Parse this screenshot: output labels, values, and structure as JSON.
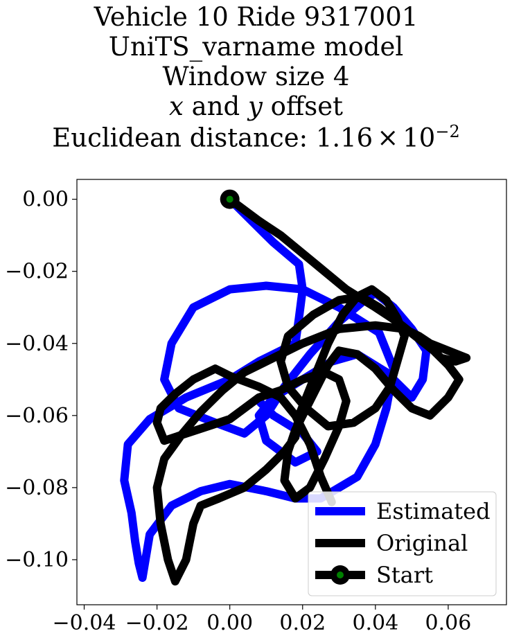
{
  "title_lines": [
    "Vehicle 10 Ride 9317001",
    "UniTS_varname model",
    "Window size 4"
  ],
  "title_offset_line": {
    "x_var": "x",
    "and_word": " and ",
    "y_var": "y",
    "suffix": " offset"
  },
  "title_distance_line": {
    "prefix": "Euclidean distance: ",
    "mantissa": "1.16",
    "times": "×",
    "base": "10",
    "exponent": "−2"
  },
  "colors": {
    "estimated": "#0000ff",
    "original": "#000000",
    "start_marker": "#008000",
    "axes": "#000000"
  },
  "chart_data": {
    "type": "line",
    "xlim": [
      -0.042,
      0.076
    ],
    "ylim": [
      -0.1125,
      0.0055
    ],
    "x_ticks": [
      -0.04,
      -0.02,
      0.0,
      0.02,
      0.04,
      0.06
    ],
    "x_tick_labels": [
      "−0.04",
      "−0.02",
      "0.00",
      "0.02",
      "0.04",
      "0.06"
    ],
    "y_ticks": [
      0.0,
      -0.02,
      -0.04,
      -0.06,
      -0.08,
      -0.1
    ],
    "y_tick_labels": [
      "0.00",
      "−0.02",
      "−0.04",
      "−0.06",
      "−0.08",
      "−0.10"
    ],
    "grid": false,
    "legend": {
      "location": "lower-right",
      "entries": [
        "Estimated",
        "Original",
        "Start"
      ]
    },
    "series": [
      {
        "name": "Estimated",
        "color": "#0000ff",
        "x": [
          0.0,
          0.012,
          0.019,
          0.02,
          0.019,
          0.018,
          0.008,
          0.0,
          -0.012,
          -0.022,
          -0.028,
          -0.029,
          -0.027,
          -0.026,
          -0.025,
          -0.024,
          -0.022,
          -0.016,
          -0.008,
          0.0,
          0.01,
          0.018,
          0.025,
          0.035,
          0.04,
          0.043,
          0.045,
          0.041,
          0.03,
          0.02,
          0.01,
          0.0,
          -0.01,
          -0.016,
          -0.018,
          -0.014,
          -0.004,
          0.004,
          0.01,
          0.015,
          0.022,
          0.03,
          0.037,
          0.04,
          0.045,
          0.05,
          0.054,
          0.053,
          0.05,
          0.043,
          0.035,
          0.028,
          0.02,
          0.012,
          0.008,
          0.01,
          0.018,
          0.024,
          0.02,
          0.012,
          0.008
        ],
        "y": [
          0.0,
          -0.012,
          -0.018,
          -0.025,
          -0.033,
          -0.04,
          -0.045,
          -0.05,
          -0.055,
          -0.061,
          -0.068,
          -0.078,
          -0.087,
          -0.095,
          -0.101,
          -0.105,
          -0.093,
          -0.085,
          -0.081,
          -0.079,
          -0.081,
          -0.083,
          -0.083,
          -0.077,
          -0.068,
          -0.058,
          -0.047,
          -0.037,
          -0.03,
          -0.025,
          -0.024,
          -0.025,
          -0.03,
          -0.04,
          -0.05,
          -0.058,
          -0.062,
          -0.065,
          -0.06,
          -0.052,
          -0.043,
          -0.034,
          -0.028,
          -0.026,
          -0.03,
          -0.036,
          -0.042,
          -0.05,
          -0.055,
          -0.048,
          -0.043,
          -0.045,
          -0.05,
          -0.055,
          -0.06,
          -0.067,
          -0.073,
          -0.07,
          -0.065,
          -0.06,
          -0.056
        ]
      },
      {
        "name": "Original",
        "color": "#000000",
        "x": [
          0.0,
          0.008,
          0.014,
          0.02,
          0.026,
          0.032,
          0.04,
          0.046,
          0.051,
          0.055,
          0.058,
          0.062,
          0.065,
          0.06,
          0.055,
          0.052,
          0.048,
          0.04,
          0.03,
          0.02,
          0.012,
          0.004,
          -0.002,
          -0.008,
          -0.013,
          -0.018,
          -0.02,
          -0.019,
          -0.017,
          -0.015,
          -0.012,
          -0.01,
          -0.008,
          -0.003,
          0.004,
          0.01,
          0.015,
          0.018,
          0.019,
          0.023,
          0.027,
          0.031,
          0.035,
          0.039,
          0.043,
          0.046,
          0.048,
          0.046,
          0.044,
          0.04,
          0.034,
          0.027,
          0.021,
          0.016,
          0.014,
          0.016,
          0.023,
          0.03,
          0.036,
          0.041,
          0.046,
          0.051,
          0.056,
          0.06,
          0.063,
          0.06,
          0.055,
          0.05,
          0.045,
          0.04,
          0.035,
          0.03,
          0.027,
          0.024,
          0.021,
          0.018,
          0.016,
          0.015,
          0.018,
          0.022,
          0.026,
          0.03,
          0.032,
          0.03,
          0.026,
          0.02,
          0.014,
          0.008,
          0.004,
          0.0,
          -0.006,
          -0.012,
          -0.018,
          -0.02,
          -0.019,
          -0.015,
          -0.01,
          -0.006,
          -0.004,
          0.0,
          0.008,
          0.014,
          0.018,
          0.022,
          0.025,
          0.028
        ],
        "y": [
          0.0,
          -0.006,
          -0.01,
          -0.015,
          -0.02,
          -0.025,
          -0.03,
          -0.034,
          -0.038,
          -0.041,
          -0.044,
          -0.045,
          -0.044,
          -0.042,
          -0.04,
          -0.038,
          -0.036,
          -0.035,
          -0.036,
          -0.04,
          -0.044,
          -0.048,
          -0.053,
          -0.059,
          -0.065,
          -0.072,
          -0.08,
          -0.09,
          -0.1,
          -0.106,
          -0.1,
          -0.09,
          -0.085,
          -0.083,
          -0.08,
          -0.075,
          -0.07,
          -0.066,
          -0.06,
          -0.05,
          -0.04,
          -0.032,
          -0.027,
          -0.025,
          -0.028,
          -0.033,
          -0.038,
          -0.045,
          -0.052,
          -0.058,
          -0.062,
          -0.063,
          -0.058,
          -0.052,
          -0.045,
          -0.038,
          -0.032,
          -0.028,
          -0.027,
          -0.03,
          -0.034,
          -0.038,
          -0.042,
          -0.046,
          -0.05,
          -0.055,
          -0.06,
          -0.058,
          -0.053,
          -0.047,
          -0.043,
          -0.042,
          -0.046,
          -0.052,
          -0.058,
          -0.064,
          -0.07,
          -0.078,
          -0.083,
          -0.08,
          -0.072,
          -0.063,
          -0.056,
          -0.05,
          -0.048,
          -0.05,
          -0.053,
          -0.055,
          -0.058,
          -0.061,
          -0.063,
          -0.065,
          -0.067,
          -0.062,
          -0.058,
          -0.054,
          -0.05,
          -0.048,
          -0.047,
          -0.049,
          -0.052,
          -0.055,
          -0.06,
          -0.068,
          -0.077,
          -0.084
        ]
      }
    ],
    "start_point": {
      "name": "Start",
      "x": 0.0,
      "y": 0.0
    }
  }
}
